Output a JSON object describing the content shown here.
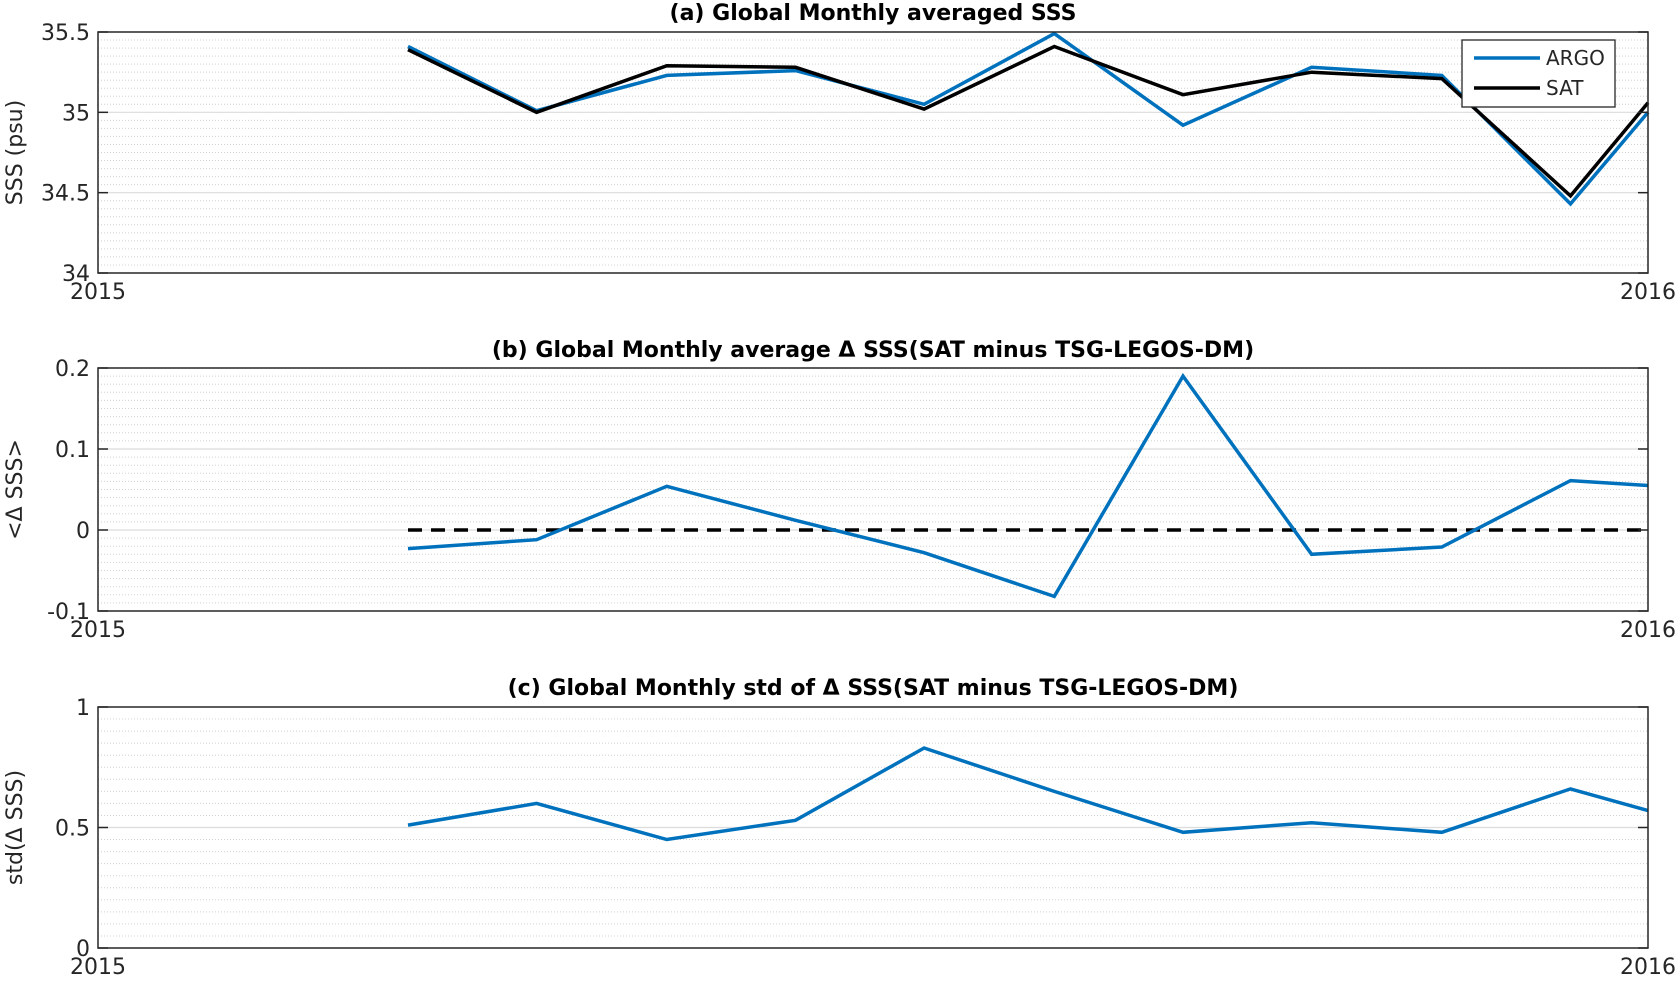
{
  "chart_data": [
    {
      "type": "line",
      "title": "(a) Global Monthly averaged SSS",
      "ylabel": "SSS (psu)",
      "xlim": [
        2015,
        2016
      ],
      "ylim": [
        34,
        35.5
      ],
      "xticks": [
        "2015",
        "2016"
      ],
      "yticks": [
        "34",
        "34.5",
        "35",
        "35.5"
      ],
      "grid": "major and minor horizontal",
      "legend": "top-right",
      "x": [
        2015.2,
        2015.283,
        2015.367,
        2015.45,
        2015.533,
        2015.617,
        2015.7,
        2015.783,
        2015.867,
        2015.95,
        2016.0
      ],
      "series": [
        {
          "name": "ARGO",
          "color": "#0072bd",
          "values": [
            35.41,
            35.01,
            35.23,
            35.26,
            35.05,
            35.49,
            34.92,
            35.28,
            35.23,
            34.43,
            35.0
          ]
        },
        {
          "name": "SAT",
          "color": "#000000",
          "values": [
            35.39,
            35.0,
            35.29,
            35.28,
            35.02,
            35.41,
            35.11,
            35.25,
            35.21,
            34.48,
            35.06
          ]
        }
      ]
    },
    {
      "type": "line",
      "title": "(b) Global Monthly average Δ SSS(SAT minus TSG-LEGOS-DM)",
      "ylabel": "<Δ SSS>",
      "xlim": [
        2015,
        2016
      ],
      "ylim": [
        -0.1,
        0.2
      ],
      "xticks": [
        "2015",
        "2016"
      ],
      "yticks": [
        "-0.1",
        "0",
        "0.1",
        "0.2"
      ],
      "grid": "major and minor horizontal",
      "x": [
        2015.2,
        2015.283,
        2015.367,
        2015.45,
        2015.533,
        2015.617,
        2015.7,
        2015.783,
        2015.867,
        2015.95,
        2016.0
      ],
      "series": [
        {
          "color": "#0072bd",
          "values": [
            -0.023,
            -0.012,
            0.054,
            0.012,
            -0.028,
            -0.082,
            0.19,
            -0.03,
            -0.021,
            0.061,
            0.055
          ]
        }
      ],
      "reference_line": {
        "y": 0,
        "x": [
          2015.2,
          2016.0
        ],
        "style": "dashed",
        "color": "#000000"
      }
    },
    {
      "type": "line",
      "title": "(c) Global Monthly std of Δ SSS(SAT minus TSG-LEGOS-DM)",
      "ylabel": "std(Δ SSS)",
      "xlim": [
        2015,
        2016
      ],
      "ylim": [
        0,
        1
      ],
      "xticks": [
        "2015",
        "2016"
      ],
      "yticks": [
        "0",
        "0.5",
        "1"
      ],
      "grid": "major and minor horizontal",
      "x": [
        2015.2,
        2015.283,
        2015.367,
        2015.45,
        2015.533,
        2015.617,
        2015.7,
        2015.783,
        2015.867,
        2015.95,
        2016.0
      ],
      "series": [
        {
          "color": "#0072bd",
          "values": [
            0.51,
            0.6,
            0.45,
            0.53,
            0.83,
            0.65,
            0.48,
            0.52,
            0.48,
            0.66,
            0.57
          ]
        }
      ]
    }
  ]
}
